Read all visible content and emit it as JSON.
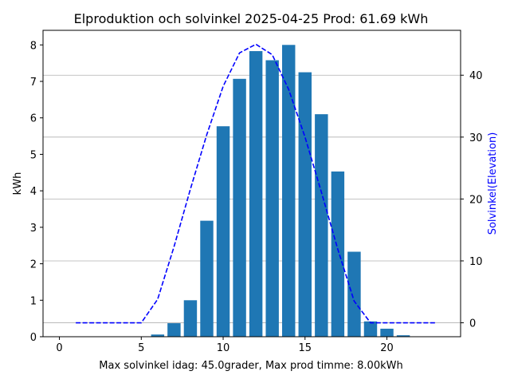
{
  "chart_data": {
    "type": "bar",
    "title": "Elproduktion och solvinkel 2025-04-25 Prod: 61.69 kWh",
    "xlabel": "Max solvinkel idag: 45.0grader, Max prod timme: 8.00kWh",
    "ylabel": "kWh",
    "y2label": "Solvinkel(Elevation)",
    "xlim": [
      -1,
      24.5
    ],
    "ylim": [
      0,
      8.4
    ],
    "y2lim": [
      -2.25,
      47.25
    ],
    "xticks": [
      0,
      5,
      10,
      15,
      20
    ],
    "yticks": [
      0,
      1,
      2,
      3,
      4,
      5,
      6,
      7,
      8
    ],
    "y2ticks": [
      0,
      10,
      20,
      30,
      40
    ],
    "grid": "horizontal lines at right-axis ticks",
    "bars": {
      "name": "kWh",
      "color": "#1f77b4",
      "x": [
        6,
        7,
        8,
        9,
        10,
        11,
        12,
        13,
        14,
        15,
        16,
        17,
        18,
        19,
        20,
        21
      ],
      "values": [
        0.06,
        0.37,
        1.0,
        3.18,
        5.77,
        7.07,
        7.83,
        7.58,
        8.0,
        7.25,
        6.1,
        4.53,
        2.33,
        0.42,
        0.22,
        0.04
      ]
    },
    "line": {
      "name": "Solvinkel",
      "color": "#0000ff",
      "style": "dashed",
      "axis": "right",
      "x": [
        1,
        2,
        3,
        4,
        5,
        6,
        7,
        8,
        9,
        10,
        11,
        12,
        13,
        14,
        15,
        16,
        17,
        18,
        19,
        20,
        21,
        22,
        23
      ],
      "values": [
        0,
        0,
        0,
        0,
        0,
        3.8,
        12.3,
        21.6,
        30.4,
        38.2,
        43.6,
        45.0,
        43.3,
        37.7,
        30.0,
        21.1,
        11.9,
        3.5,
        0,
        0,
        0,
        0,
        0
      ]
    }
  }
}
